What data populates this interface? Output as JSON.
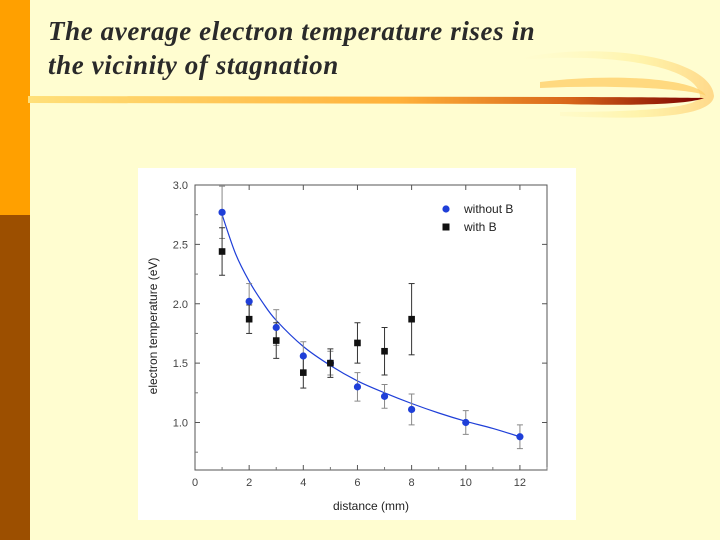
{
  "slide": {
    "title_lines": [
      "The average electron temperature rises in",
      "the vicinity of stagnation"
    ],
    "colors": {
      "background": "#fffdd0",
      "sidebar_top": "#ffa000",
      "sidebar_bottom": "#9c4f00",
      "accent_dark": "#7a0000"
    }
  },
  "chart_data": {
    "type": "scatter",
    "title": "",
    "xlabel": "distance (mm)",
    "ylabel": "electron temperature (eV)",
    "xlim": [
      0,
      13
    ],
    "ylim": [
      0.6,
      3.0
    ],
    "x_ticks": [
      "0",
      "2",
      "4",
      "6",
      "8",
      "10",
      "12"
    ],
    "y_ticks": [
      "1.0",
      "1.5",
      "2.0",
      "2.5",
      "3.0"
    ],
    "legend_position": "top-right",
    "series": [
      {
        "name": "without B",
        "marker": "circle",
        "color": "#1f3fd8",
        "points": [
          {
            "x": 1,
            "y": 2.77,
            "err": 0.22
          },
          {
            "x": 2,
            "y": 2.02,
            "err": 0.15
          },
          {
            "x": 3,
            "y": 1.8,
            "err": 0.15
          },
          {
            "x": 4,
            "y": 1.56,
            "err": 0.12
          },
          {
            "x": 5,
            "y": 1.5,
            "err": 0.1
          },
          {
            "x": 6,
            "y": 1.3,
            "err": 0.12
          },
          {
            "x": 7,
            "y": 1.22,
            "err": 0.1
          },
          {
            "x": 8,
            "y": 1.11,
            "err": 0.13
          },
          {
            "x": 10,
            "y": 1.0,
            "err": 0.1
          },
          {
            "x": 12,
            "y": 0.88,
            "err": 0.1
          }
        ]
      },
      {
        "name": "with B",
        "marker": "square",
        "color": "#111111",
        "points": [
          {
            "x": 1,
            "y": 2.44,
            "err": 0.2
          },
          {
            "x": 2,
            "y": 1.87,
            "err": 0.12
          },
          {
            "x": 3,
            "y": 1.69,
            "err": 0.15
          },
          {
            "x": 4,
            "y": 1.42,
            "err": 0.13
          },
          {
            "x": 5,
            "y": 1.5,
            "err": 0.12
          },
          {
            "x": 6,
            "y": 1.67,
            "err": 0.17
          },
          {
            "x": 7,
            "y": 1.6,
            "err": 0.2
          },
          {
            "x": 8,
            "y": 1.87,
            "err": 0.3
          }
        ]
      }
    ],
    "fit_curve": {
      "name": "fit",
      "color": "#1f3fd8",
      "points": [
        {
          "x": 1,
          "y": 2.75
        },
        {
          "x": 1.5,
          "y": 2.42
        },
        {
          "x": 2,
          "y": 2.19
        },
        {
          "x": 2.5,
          "y": 2.01
        },
        {
          "x": 3,
          "y": 1.86
        },
        {
          "x": 4,
          "y": 1.64
        },
        {
          "x": 5,
          "y": 1.48
        },
        {
          "x": 6,
          "y": 1.35
        },
        {
          "x": 7,
          "y": 1.25
        },
        {
          "x": 8,
          "y": 1.16
        },
        {
          "x": 9,
          "y": 1.08
        },
        {
          "x": 10,
          "y": 1.01
        },
        {
          "x": 11,
          "y": 0.95
        },
        {
          "x": 12,
          "y": 0.88
        }
      ]
    }
  }
}
